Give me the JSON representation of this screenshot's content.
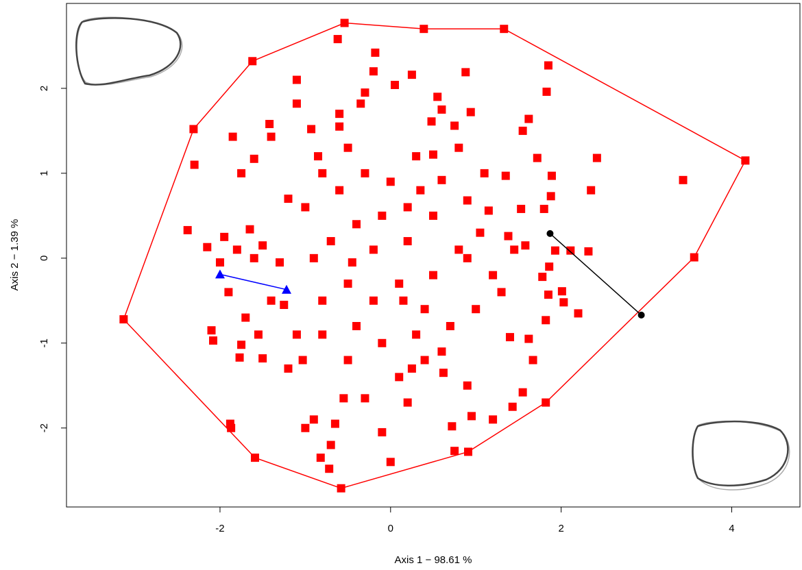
{
  "chart_data": {
    "type": "scatter",
    "x_label": "Axis  1 − 98.61 %",
    "y_label": "Axis  2 − 1.39 %",
    "xlim": [
      -3.8,
      4.8
    ],
    "ylim": [
      -2.93,
      3.0
    ],
    "xticks": [
      -2,
      0,
      2,
      4
    ],
    "yticks": [
      -2,
      -1,
      0,
      1,
      2
    ],
    "grid": false,
    "series": [
      {
        "color": "#ff0000",
        "marker": "square",
        "line": false,
        "x": [
          3.43,
          2.35,
          2.42,
          2.32,
          2.11,
          1.93,
          2.01,
          2.03,
          2.2,
          1.82,
          1.85,
          1.78,
          1.86,
          1.8,
          1.88,
          1.89,
          1.85,
          1.83,
          1.62,
          1.55,
          1.72,
          1.53,
          1.35,
          1.38,
          1.58,
          1.45,
          1.3,
          1.4,
          1.62,
          1.67,
          1.55,
          1.43,
          1.2,
          0.95,
          0.9,
          0.72,
          0.75,
          0.62,
          0.4,
          0.25,
          0.2,
          -0.1,
          0.0,
          -0.3,
          -0.55,
          -0.7,
          -0.72,
          -0.82,
          -0.9,
          -1.0,
          -0.65,
          -1.2,
          -1.03,
          -1.55,
          -1.7,
          -1.9,
          -2.1,
          -2.08,
          -1.75,
          -1.77,
          -1.5,
          -1.88,
          -1.87,
          -2.38,
          -2.15,
          -2.0,
          -1.95,
          -1.8,
          -1.65,
          -1.6,
          -1.5,
          -1.3,
          -1.25,
          -1.4,
          -2.3,
          -1.85,
          -1.6,
          -1.75,
          -1.42,
          -1.4,
          -1.1,
          -1.1,
          -0.93,
          -0.85,
          -0.6,
          -0.6,
          -0.62,
          -0.18,
          -0.2,
          0.05,
          -0.3,
          -0.35,
          0.25,
          0.55,
          0.6,
          0.48,
          0.88,
          0.94,
          0.75,
          0.5,
          0.3,
          0.6,
          0.9,
          1.15,
          1.05,
          0.8,
          0.5,
          0.2,
          -0.1,
          -0.4,
          -0.7,
          -1.0,
          -1.2,
          -0.9,
          -0.5,
          -0.2,
          0.1,
          0.4,
          0.7,
          1.0,
          0.3,
          -0.1,
          -0.4,
          -0.8,
          -0.6,
          -0.3,
          0.0,
          0.2,
          -0.2,
          0.5,
          0.9,
          1.2,
          -1.1,
          0.6,
          0.1,
          -0.5,
          -0.8,
          0.35,
          -0.5,
          0.8,
          1.1,
          -0.8,
          0.15,
          -0.45
        ],
        "y": [
          0.92,
          0.8,
          1.18,
          0.08,
          0.09,
          0.09,
          -0.39,
          -0.52,
          -0.65,
          -0.73,
          -0.43,
          -0.22,
          -0.1,
          0.58,
          0.73,
          0.97,
          2.27,
          1.96,
          1.64,
          1.5,
          1.18,
          0.58,
          0.97,
          0.26,
          0.15,
          0.1,
          -0.4,
          -0.93,
          -0.95,
          -1.2,
          -1.58,
          -1.75,
          -1.9,
          -1.86,
          -1.5,
          -1.98,
          -2.27,
          -1.35,
          -1.2,
          -1.3,
          -1.7,
          -2.05,
          -2.4,
          -1.65,
          -1.65,
          -2.2,
          -2.48,
          -2.35,
          -1.9,
          -2.0,
          -1.95,
          -1.3,
          -1.2,
          -0.9,
          -0.7,
          -0.4,
          -0.85,
          -0.97,
          -1.02,
          -1.17,
          -1.18,
          -1.95,
          -2.0,
          0.33,
          0.13,
          -0.05,
          0.25,
          0.1,
          0.34,
          0.0,
          0.15,
          -0.05,
          -0.55,
          -0.5,
          1.1,
          1.43,
          1.17,
          1.0,
          1.58,
          1.43,
          2.1,
          1.82,
          1.52,
          1.2,
          1.55,
          1.7,
          2.58,
          2.42,
          2.2,
          2.04,
          1.95,
          1.82,
          2.16,
          1.9,
          1.75,
          1.61,
          2.19,
          1.72,
          1.56,
          1.22,
          1.2,
          0.92,
          0.68,
          0.56,
          0.3,
          0.1,
          0.5,
          0.6,
          0.5,
          0.4,
          0.2,
          0.6,
          0.7,
          0.0,
          -0.3,
          -0.5,
          -0.3,
          -0.6,
          -0.8,
          -0.6,
          -0.9,
          -1.0,
          -0.8,
          -0.5,
          0.8,
          1.0,
          0.9,
          0.2,
          0.1,
          -0.2,
          0.0,
          -0.2,
          -0.9,
          -1.1,
          -1.4,
          -1.2,
          -0.9,
          0.8,
          1.3,
          1.3,
          1.0,
          1.0,
          -0.5,
          -0.05
        ]
      },
      {
        "color": "#ff0000",
        "marker": "square",
        "line": true,
        "closed": true,
        "x": [
          -0.54,
          0.39,
          1.33,
          4.16,
          3.56,
          1.82,
          0.91,
          -0.58,
          -1.59,
          -3.13,
          -2.31,
          -1.62
        ],
        "y": [
          2.77,
          2.7,
          2.7,
          1.15,
          0.01,
          -1.7,
          -2.28,
          -2.71,
          -2.35,
          -0.72,
          1.52,
          2.32
        ]
      },
      {
        "color": "#0000ff",
        "marker": "triangle",
        "line": true,
        "closed": false,
        "x": [
          -2.0,
          -1.22
        ],
        "y": [
          -0.19,
          -0.37
        ]
      },
      {
        "color": "#000000",
        "marker": "circle",
        "line": true,
        "closed": false,
        "x": [
          1.87,
          2.94
        ],
        "y": [
          0.29,
          -0.67
        ]
      }
    ]
  }
}
